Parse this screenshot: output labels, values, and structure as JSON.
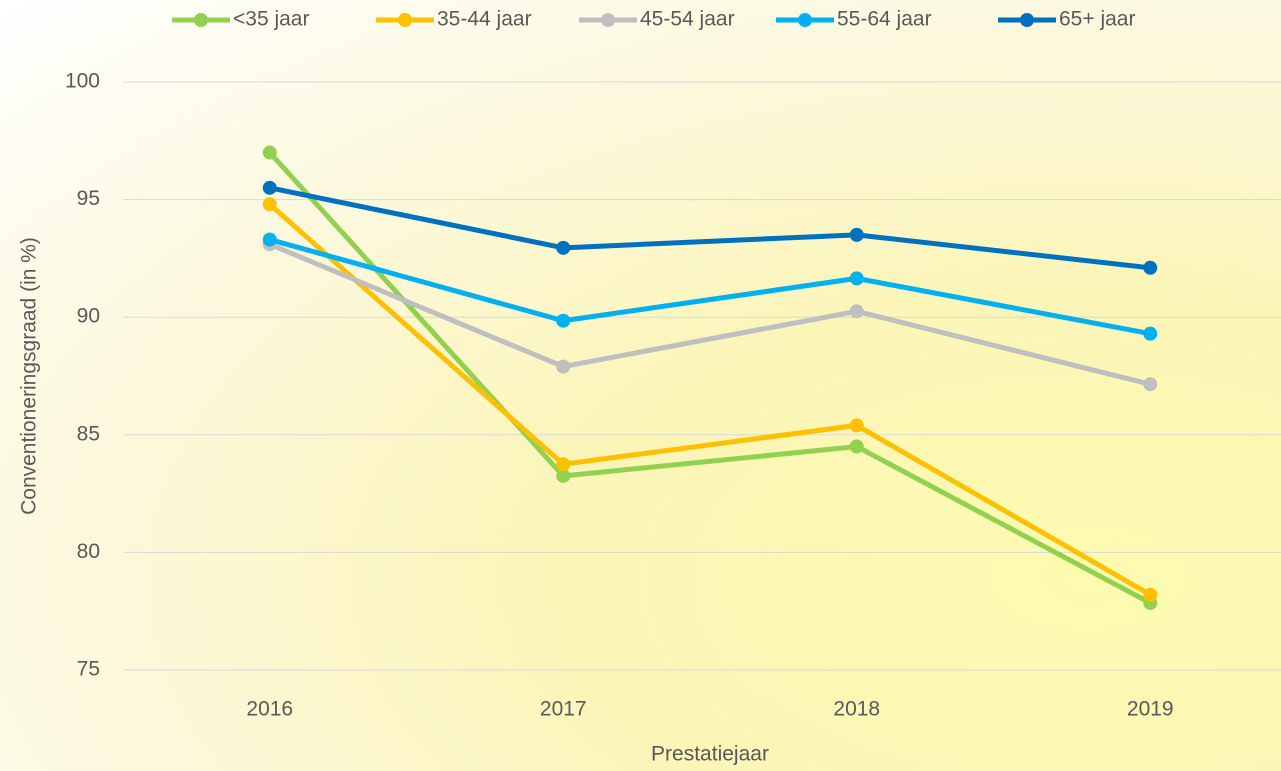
{
  "chart_data": {
    "type": "line",
    "x_label": "Prestatiejaar",
    "y_label": "Conventioneringsgraad (in %)",
    "categories": [
      "2016",
      "2017",
      "2018",
      "2019"
    ],
    "series": [
      {
        "name": "<35 jaar",
        "color": "#92d050",
        "values": [
          97.0,
          83.25,
          84.5,
          77.85
        ]
      },
      {
        "name": "35-44 jaar",
        "color": "#ffc000",
        "values": [
          94.8,
          83.75,
          85.4,
          78.2
        ]
      },
      {
        "name": "45-54 jaar",
        "color": "#bfbfbf",
        "values": [
          93.1,
          87.9,
          90.25,
          87.15
        ]
      },
      {
        "name": "55-64 jaar",
        "color": "#00b0f0",
        "values": [
          93.3,
          89.85,
          91.65,
          89.3
        ]
      },
      {
        "name": "65+ jaar",
        "color": "#0070c0",
        "values": [
          95.5,
          92.95,
          93.5,
          92.1
        ]
      }
    ],
    "ylim": [
      75,
      100
    ],
    "yticks": [
      75,
      80,
      85,
      90,
      95,
      100
    ],
    "grid": true,
    "legend": "top"
  }
}
